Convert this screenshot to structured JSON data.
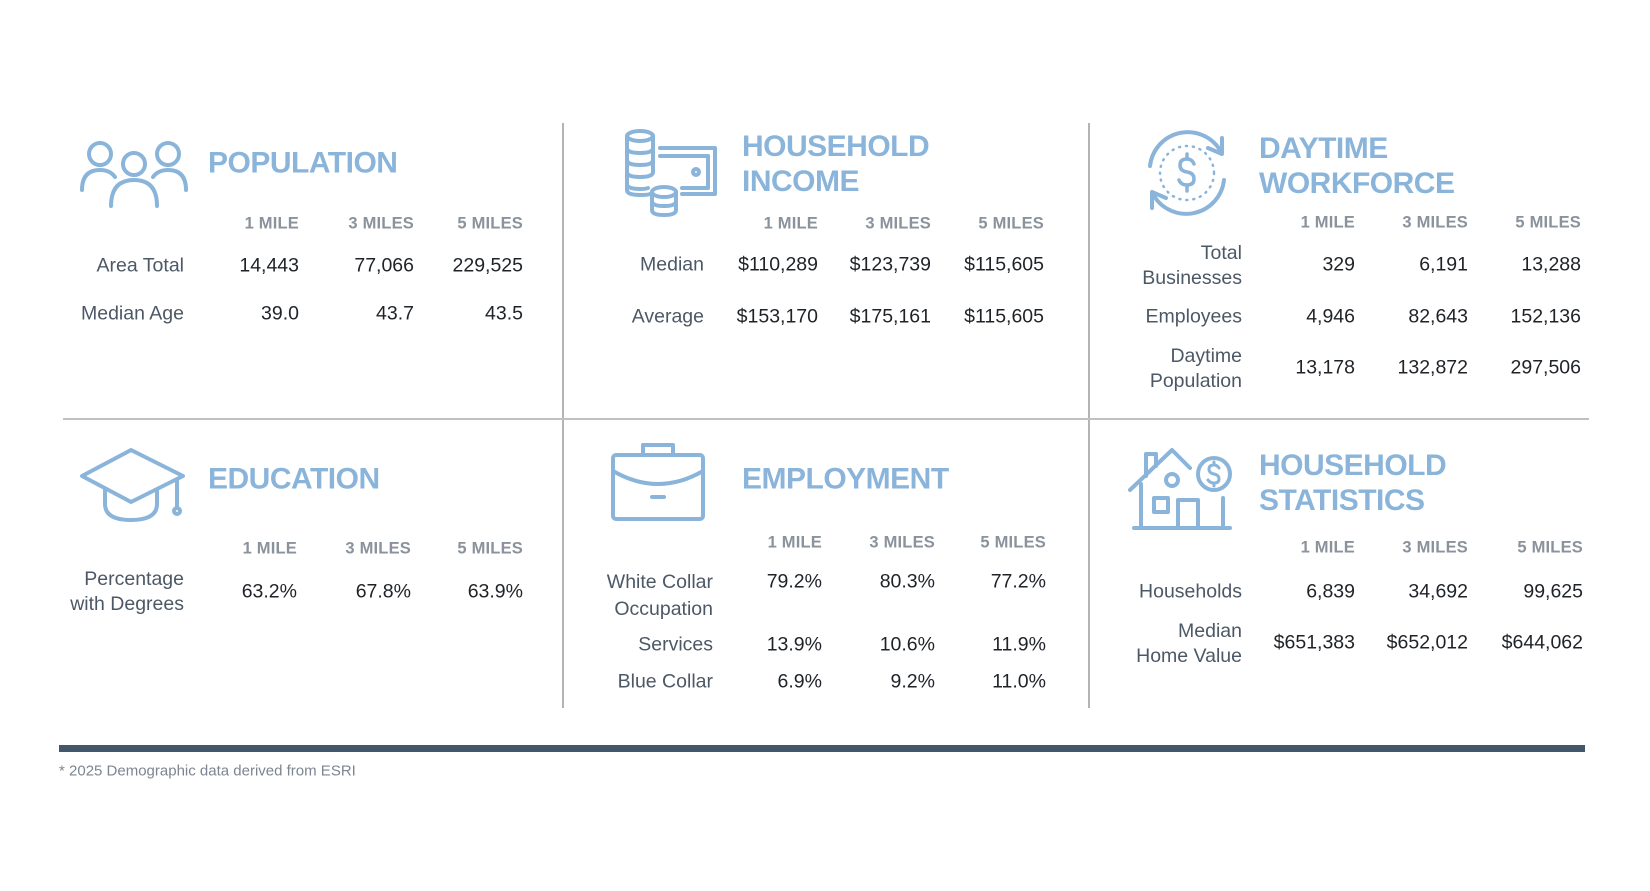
{
  "accent_color": "#8ab4da",
  "divider_color": "#44566a",
  "columns": [
    "1 MILE",
    "3 MILES",
    "5 MILES"
  ],
  "population": {
    "icon": "people-group-icon",
    "title": "POPULATION",
    "rows": [
      {
        "label": "Area Total",
        "values": [
          "14,443",
          "77,066",
          "229,525"
        ]
      },
      {
        "label": "Median Age",
        "values": [
          "39.0",
          "43.7",
          "43.5"
        ]
      }
    ]
  },
  "household_income": {
    "icon": "coins-cash-icon",
    "title": "HOUSEHOLD\nINCOME",
    "rows": [
      {
        "label": "Median",
        "values": [
          "$110,289",
          "$123,739",
          "$115,605"
        ]
      },
      {
        "label": "Average",
        "values": [
          "$153,170",
          "$175,161",
          "$115,605"
        ]
      }
    ]
  },
  "daytime_workforce": {
    "icon": "dollar-cycle-icon",
    "title": "DAYTIME\nWORKFORCE",
    "rows": [
      {
        "label": "Total\nBusinesses",
        "values": [
          "329",
          "6,191",
          "13,288"
        ]
      },
      {
        "label": "Employees",
        "values": [
          "4,946",
          "82,643",
          "152,136"
        ]
      },
      {
        "label": "Daytime\nPopulation",
        "values": [
          "13,178",
          "132,872",
          "297,506"
        ]
      }
    ]
  },
  "education": {
    "icon": "graduation-cap-icon",
    "title": "EDUCATION",
    "rows": [
      {
        "label": "Percentage\nwith Degrees",
        "values": [
          "63.2%",
          "67.8%",
          "63.9%"
        ]
      }
    ]
  },
  "employment": {
    "icon": "briefcase-icon",
    "title": "EMPLOYMENT",
    "rows": [
      {
        "label": "White Collar\nOccupation",
        "values": [
          "79.2%",
          "80.3%",
          "77.2%"
        ]
      },
      {
        "label": "Services",
        "values": [
          "13.9%",
          "10.6%",
          "11.9%"
        ]
      },
      {
        "label": "Blue Collar",
        "values": [
          "6.9%",
          "9.2%",
          "11.0%"
        ]
      }
    ]
  },
  "household_statistics": {
    "icon": "house-dollar-icon",
    "title": "HOUSEHOLD\nSTATISTICS",
    "rows": [
      {
        "label": "Households",
        "values": [
          "6,839",
          "34,692",
          "99,625"
        ]
      },
      {
        "label": "Median\nHome Value",
        "values": [
          "$651,383",
          "$652,012",
          "$644,062"
        ]
      }
    ]
  },
  "footnote": "* 2025 Demographic data derived from ESRI"
}
